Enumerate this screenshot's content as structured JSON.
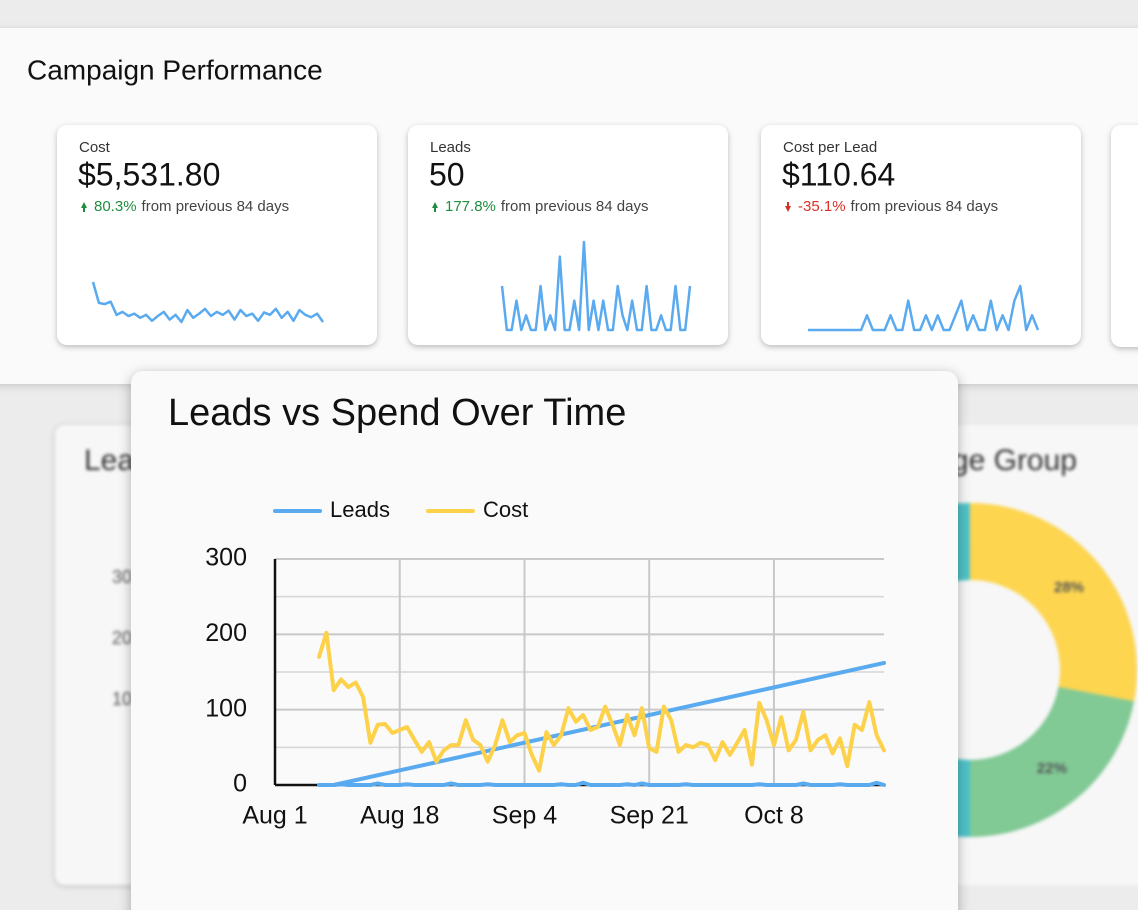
{
  "header": {
    "title": "Campaign Performance"
  },
  "kpis": [
    {
      "label": "Cost",
      "value": "$5,531.80",
      "change": "80.3%",
      "note": "from previous 84 days",
      "change_color": "#1e8e3e",
      "spark_color": "#5aaaf0",
      "sparkline": [
        95,
        60,
        58,
        62,
        40,
        45,
        38,
        42,
        35,
        40,
        30,
        38,
        45,
        32,
        40,
        28,
        48,
        35,
        42,
        50,
        38,
        45,
        40,
        47,
        32,
        48,
        38,
        42,
        30,
        44,
        40,
        50,
        35,
        45,
        30,
        48,
        40,
        36,
        42,
        28
      ]
    },
    {
      "label": "Leads",
      "value": "50",
      "change": "177.8%",
      "note": "from previous 84 days",
      "change_color": "#1e8e3e",
      "spark_color": "#5aaaf0",
      "sparkline": [
        3,
        0,
        0,
        2,
        0,
        1,
        0,
        0,
        3,
        0,
        1,
        0,
        5,
        0,
        0,
        2,
        0,
        6,
        0,
        2,
        0,
        2,
        0,
        0,
        3,
        1,
        0,
        2,
        0,
        0,
        3,
        0,
        0,
        1,
        0,
        0,
        3,
        0,
        0,
        3
      ]
    },
    {
      "label": "Cost per Lead",
      "value": "$110.64",
      "change": "-35.1%",
      "note": "from previous 84 days",
      "change_color": "#d93025",
      "spark_color": "#5aaaf0",
      "sparkline": [
        0,
        0,
        0,
        0,
        0,
        0,
        0,
        0,
        0,
        0,
        1,
        0,
        0,
        0,
        1,
        0,
        0,
        2,
        0,
        0,
        1,
        0,
        1,
        0,
        0,
        1,
        2,
        0,
        1,
        0,
        0,
        2,
        0,
        1,
        0,
        2,
        3,
        0,
        1,
        0
      ]
    }
  ],
  "background_cards": {
    "left": {
      "title": "Lea",
      "yticks": [
        "30",
        "20",
        "10"
      ]
    },
    "right": {
      "title": "ge Group",
      "slices": [
        {
          "value": 28,
          "label": "28%",
          "color": "#fdd54f"
        },
        {
          "value": 22,
          "label": "22%",
          "color": "#81c995"
        }
      ]
    }
  },
  "chart_data": {
    "type": "line",
    "title": "Leads vs Spend Over Time",
    "legend": "top",
    "x": [
      6,
      7,
      8,
      9,
      10,
      11,
      12,
      13,
      14,
      15,
      16,
      17,
      18,
      19,
      20,
      21,
      22,
      23,
      24,
      25,
      26,
      27,
      28,
      29,
      30,
      31,
      32,
      33,
      34,
      35,
      36,
      37,
      38,
      39,
      40,
      41,
      42,
      43,
      44,
      45,
      46,
      47,
      48,
      49,
      50,
      51,
      52,
      53,
      54,
      55,
      56,
      57,
      58,
      59,
      60,
      61,
      62,
      63,
      64,
      65,
      66,
      67,
      68,
      69,
      70,
      71,
      72,
      73,
      74,
      75,
      76,
      77,
      78,
      79,
      80,
      81,
      82,
      83
    ],
    "series": [
      {
        "name": "Leads",
        "color": "#5aaaf0",
        "values": [
          0,
          0,
          0,
          1,
          0,
          0,
          0,
          0,
          2,
          0,
          0,
          0,
          1,
          0,
          0,
          0,
          0,
          0,
          2,
          0,
          0,
          0,
          0,
          1,
          0,
          0,
          0,
          0,
          0,
          0,
          0,
          0,
          0,
          1,
          0,
          0,
          3,
          0,
          0,
          0,
          0,
          0,
          1,
          0,
          2,
          0,
          0,
          0,
          0,
          0,
          1,
          0,
          0,
          0,
          0,
          0,
          0,
          0,
          0,
          0,
          1,
          0,
          0,
          0,
          0,
          0,
          2,
          0,
          0,
          0,
          0,
          1,
          0,
          0,
          0,
          0,
          3,
          0
        ]
      },
      {
        "name": "Cost",
        "color": "#fdd24a",
        "values": [
          170,
          202,
          126,
          140,
          130,
          136,
          117,
          56,
          80,
          81,
          69,
          73,
          77,
          60,
          44,
          57,
          31,
          46,
          53,
          53,
          86,
          60,
          53,
          31,
          53,
          86,
          57,
          66,
          69,
          40,
          19,
          70,
          53,
          66,
          102,
          84,
          93,
          73,
          77,
          104,
          80,
          53,
          93,
          66,
          102,
          49,
          44,
          104,
          86,
          44,
          53,
          50,
          56,
          53,
          33,
          57,
          40,
          56,
          73,
          27,
          109,
          86,
          53,
          90,
          46,
          60,
          97,
          46,
          60,
          66,
          42,
          62,
          25,
          80,
          73,
          110,
          66,
          46
        ]
      }
    ],
    "trendline": {
      "color": "#5aaaf0",
      "x": [
        8,
        83
      ],
      "values": [
        0,
        162
      ]
    },
    "xlim": [
      0,
      83
    ],
    "xticks": [
      {
        "value": 0,
        "label": "Aug 1"
      },
      {
        "value": 17,
        "label": "Aug 18"
      },
      {
        "value": 34,
        "label": "Sep 4"
      },
      {
        "value": 51,
        "label": "Sep 21"
      },
      {
        "value": 68,
        "label": "Oct 8"
      }
    ],
    "ylim": [
      0,
      300
    ],
    "yticks": [
      0,
      100,
      200,
      300
    ],
    "yminor": [
      50,
      150,
      250
    ],
    "grid": true
  }
}
